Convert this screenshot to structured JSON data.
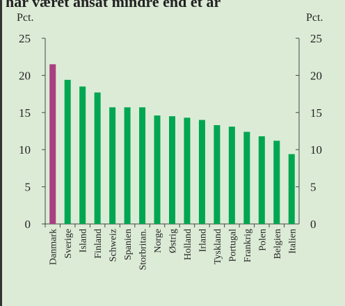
{
  "chart_data": {
    "type": "bar",
    "title": "har været ansat mindre end et år",
    "y_label": "Pct.",
    "y2_label": "Pct.",
    "categories": [
      "Danmark",
      "Sverige",
      "Island",
      "Finland",
      "Schweiz",
      "Spanien",
      "Storbritan.",
      "Norge",
      "Østrig",
      "Holland",
      "Irland",
      "Tyskland",
      "Portugal",
      "Frankrig",
      "Polen",
      "Belgien",
      "Italien"
    ],
    "values": [
      21.5,
      19.4,
      18.5,
      17.7,
      15.7,
      15.7,
      15.7,
      14.6,
      14.5,
      14.3,
      14.0,
      13.3,
      13.1,
      12.4,
      11.8,
      11.2,
      9.4
    ],
    "colors": [
      "#a8417f",
      "#00a651",
      "#00a651",
      "#00a651",
      "#00a651",
      "#00a651",
      "#00a651",
      "#00a651",
      "#00a651",
      "#00a651",
      "#00a651",
      "#00a651",
      "#00a651",
      "#00a651",
      "#00a651",
      "#00a651",
      "#00a651"
    ],
    "ylim": [
      0,
      25
    ],
    "yticks": [
      0,
      5,
      10,
      15,
      20,
      25
    ],
    "y2lim": [
      0,
      25
    ],
    "y2ticks": [
      0,
      5,
      10,
      15,
      20,
      25
    ]
  }
}
